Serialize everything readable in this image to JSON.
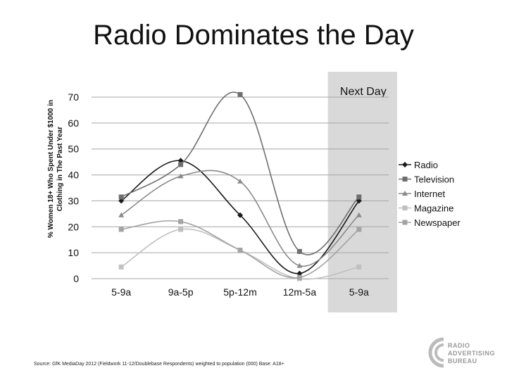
{
  "title": "Radio Dominates the Day",
  "source_note": "Source: GfK MediaDay 2012 (Fieldwork 11-12/Doublebase Respondents) weighted to population (000) Base: A18+",
  "logo": {
    "lines": [
      "RADIO",
      "ADVERTISING",
      "BUREAU"
    ]
  },
  "chart_data": {
    "type": "line",
    "title": "Radio Dominates the Day",
    "ylabel": "% Women 18+ Who Spent Under $1000 in Clothing in The Past Year",
    "xlabel": "",
    "categories": [
      "5-9a",
      "9a-5p",
      "5p-12m",
      "12m-5a",
      "5-9a"
    ],
    "ylim": [
      0,
      70
    ],
    "yticks": [
      0,
      10,
      20,
      30,
      40,
      50,
      60,
      70
    ],
    "grid": true,
    "legend_position": "right",
    "highlight": {
      "label": "Next Day",
      "category_index": 4
    },
    "series": [
      {
        "name": "Radio",
        "values": [
          30,
          45.5,
          24.5,
          2,
          30
        ],
        "color": "#1a1a1a",
        "marker": "diamond"
      },
      {
        "name": "Television",
        "values": [
          31.5,
          44,
          71,
          10.5,
          31.5
        ],
        "color": "#6e6e6e",
        "marker": "square"
      },
      {
        "name": "Internet",
        "values": [
          24.5,
          39.5,
          37.5,
          5,
          24.5
        ],
        "color": "#8a8a8a",
        "marker": "triangle"
      },
      {
        "name": "Magazine",
        "values": [
          4.5,
          19,
          11,
          0,
          4.5
        ],
        "color": "#c0c0c0",
        "marker": "square"
      },
      {
        "name": "Newspaper",
        "values": [
          19,
          22,
          11,
          0.5,
          19
        ],
        "color": "#a3a3a3",
        "marker": "square"
      }
    ]
  }
}
